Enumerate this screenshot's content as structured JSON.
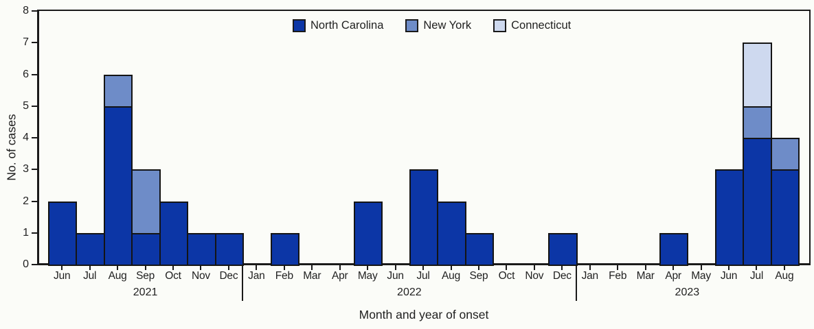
{
  "chart_data": {
    "type": "bar",
    "stacked": true,
    "title": "",
    "xlabel": "Month and year of onset",
    "ylabel": "No. of cases",
    "ylim": [
      0,
      8
    ],
    "yticks": [
      0,
      1,
      2,
      3,
      4,
      5,
      6,
      7,
      8
    ],
    "grid": false,
    "legend_position": "top-center",
    "ink_color": "#1a1a1a",
    "background_color": "#fbfcf8",
    "groups": [
      {
        "year": "2021",
        "months": [
          "Jun",
          "Jul",
          "Aug",
          "Sep",
          "Oct",
          "Nov",
          "Dec"
        ]
      },
      {
        "year": "2022",
        "months": [
          "Jan",
          "Feb",
          "Mar",
          "Apr",
          "May",
          "Jun",
          "Jul",
          "Aug",
          "Sep",
          "Oct",
          "Nov",
          "Dec"
        ]
      },
      {
        "year": "2023",
        "months": [
          "Jan",
          "Feb",
          "Mar",
          "Apr",
          "May",
          "Jun",
          "Jul",
          "Aug"
        ]
      }
    ],
    "series": [
      {
        "name": "North Carolina",
        "color": "#0c36a6",
        "values": [
          2,
          1,
          5,
          1,
          2,
          1,
          1,
          0,
          1,
          0,
          0,
          2,
          0,
          3,
          2,
          1,
          0,
          0,
          1,
          0,
          0,
          0,
          1,
          0,
          3,
          4,
          3
        ]
      },
      {
        "name": "New York",
        "color": "#6e8cc8",
        "values": [
          0,
          0,
          1,
          2,
          0,
          0,
          0,
          0,
          0,
          0,
          0,
          0,
          0,
          0,
          0,
          0,
          0,
          0,
          0,
          0,
          0,
          0,
          0,
          0,
          0,
          1,
          1
        ]
      },
      {
        "name": "Connecticut",
        "color": "#ced9ef",
        "values": [
          0,
          0,
          0,
          0,
          0,
          0,
          0,
          0,
          0,
          0,
          0,
          0,
          0,
          0,
          0,
          0,
          0,
          0,
          0,
          0,
          0,
          0,
          0,
          0,
          0,
          2,
          0
        ]
      }
    ]
  }
}
